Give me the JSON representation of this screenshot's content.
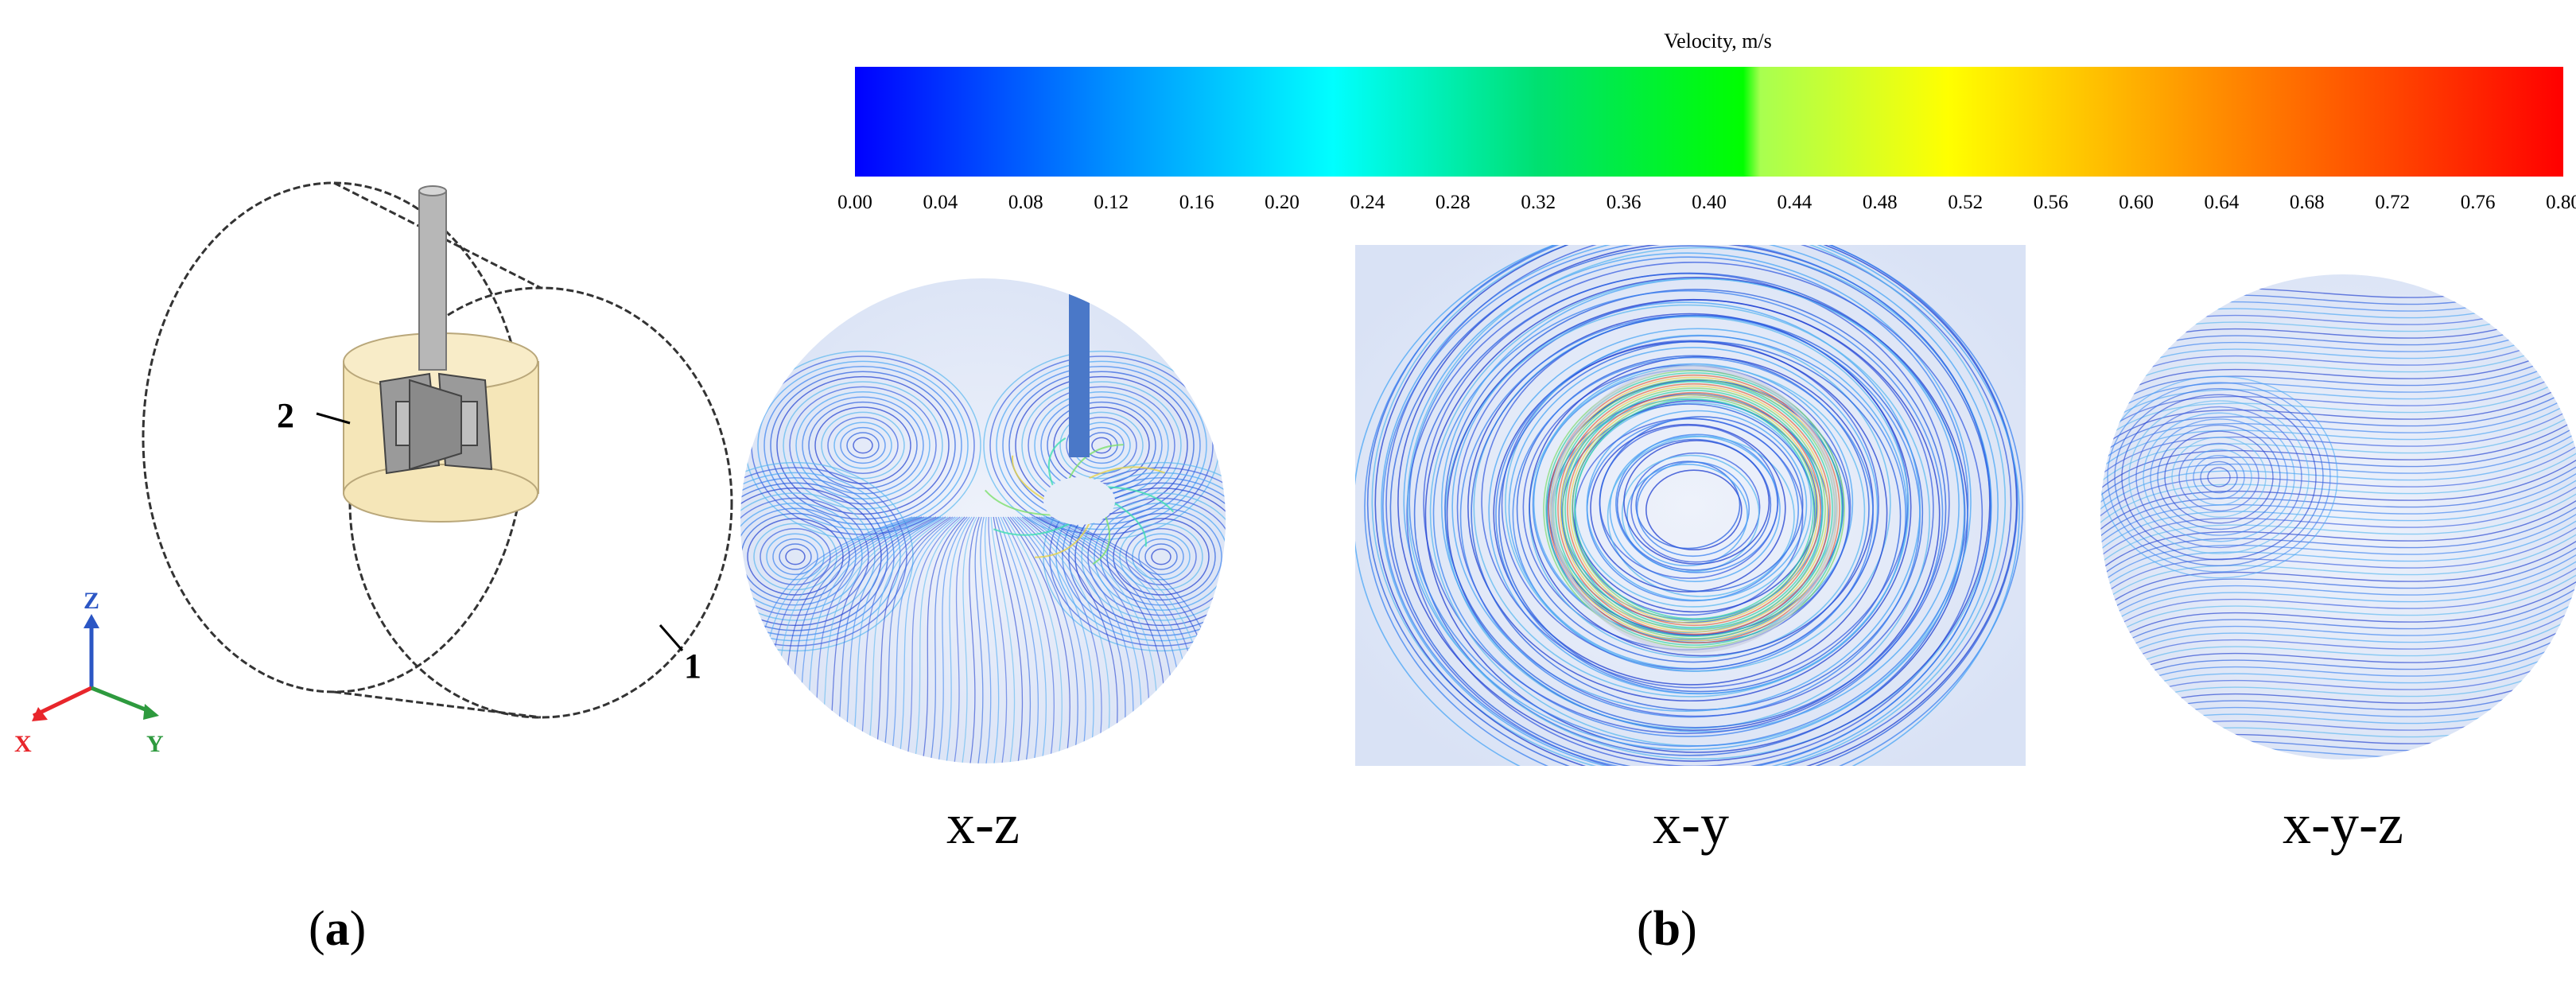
{
  "figure": {
    "panel_a": {
      "label_letter": "a",
      "paren_open": "(",
      "paren_close": ")",
      "callouts": {
        "tank": "1",
        "impeller_zone": "2"
      },
      "axes": {
        "x": "X",
        "y": "Y",
        "z": "Z"
      },
      "colors": {
        "x_axis": "#e8262b",
        "y_axis": "#2e9a3e",
        "z_axis": "#2b56c4",
        "impeller_zone": "#f5e6b8",
        "shaft": "#b7b7b7"
      }
    },
    "panel_b": {
      "label_letter": "b",
      "paren_open": "(",
      "paren_close": ")",
      "colorbar": {
        "title": "Velocity, m/s",
        "ticks": [
          "0.00",
          "0.04",
          "0.08",
          "0.12",
          "0.16",
          "0.20",
          "0.24",
          "0.28",
          "0.32",
          "0.36",
          "0.40",
          "0.44",
          "0.48",
          "0.52",
          "0.56",
          "0.60",
          "0.64",
          "0.68",
          "0.72",
          "0.76",
          "0.80"
        ],
        "min": 0.0,
        "max": 0.8,
        "colors": [
          "#0000ff",
          "#00a0ff",
          "#00ffff",
          "#00e070",
          "#00ff00",
          "#ffff00",
          "#ff9900",
          "#ff0000"
        ]
      },
      "views": [
        {
          "caption": "x-z",
          "shape": "circle"
        },
        {
          "caption": "x-y",
          "shape": "square"
        },
        {
          "caption": "x-y-z",
          "shape": "circle"
        }
      ]
    }
  }
}
